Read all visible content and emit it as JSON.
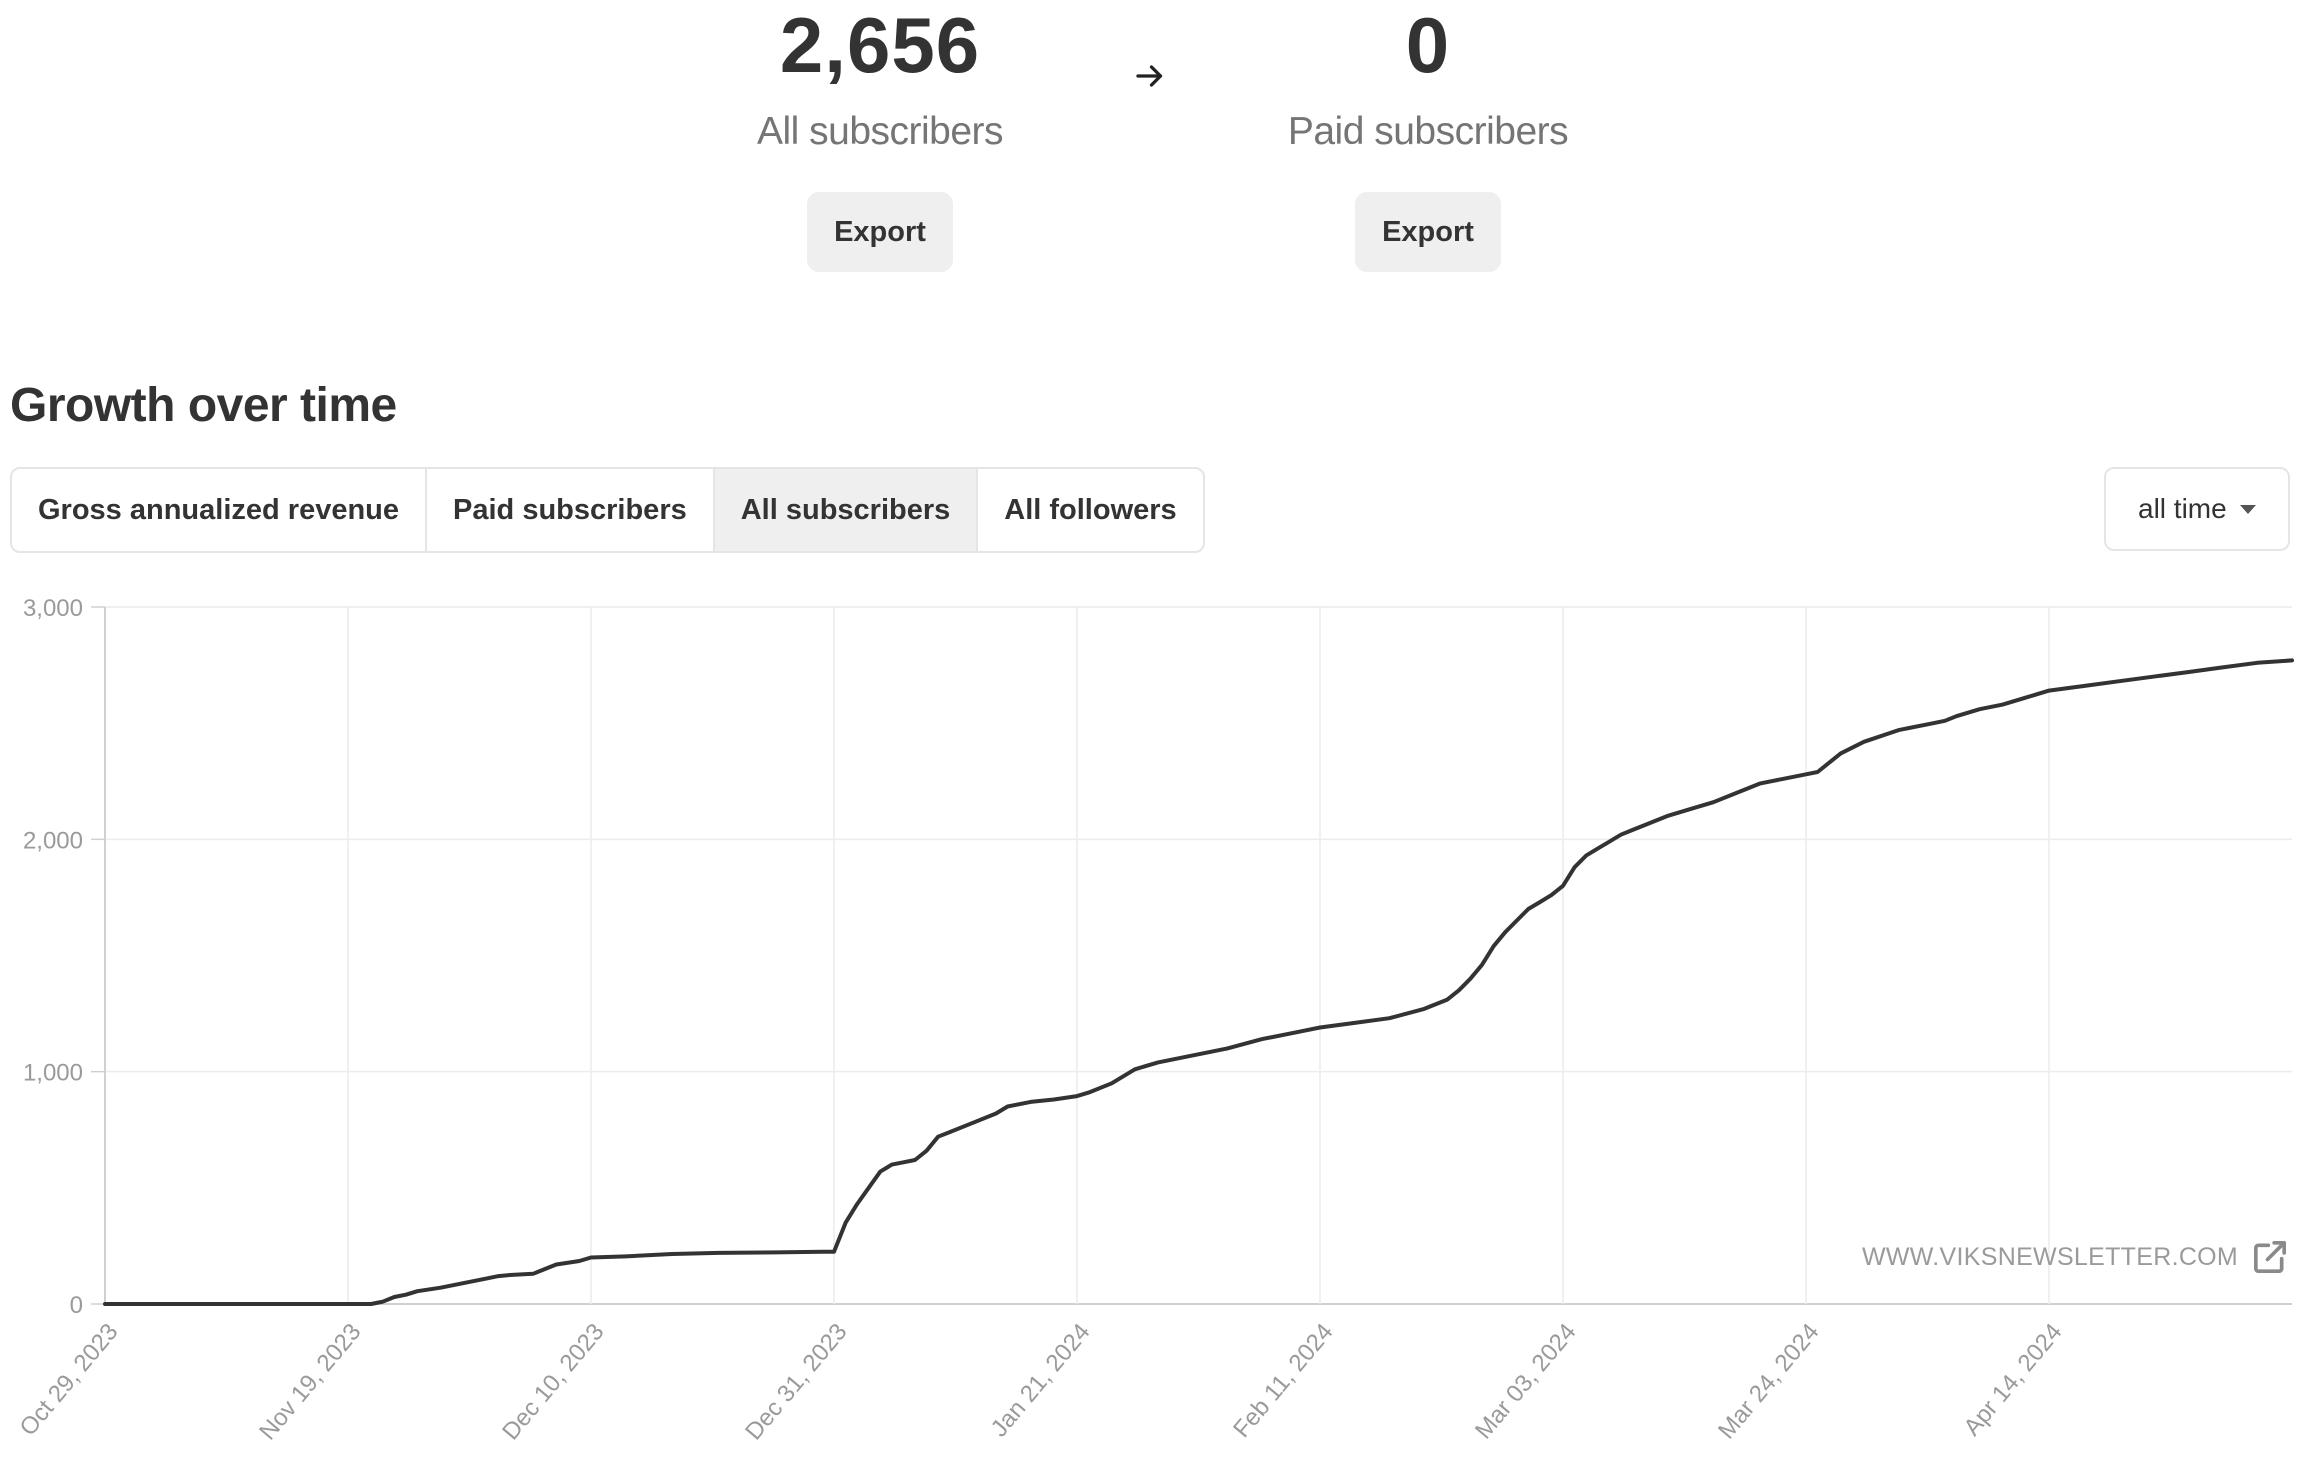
{
  "summary": {
    "all_subscribers": {
      "value": "2,656",
      "label": "All subscribers",
      "export_label": "Export"
    },
    "paid_subscribers": {
      "value": "0",
      "label": "Paid subscribers",
      "export_label": "Export"
    },
    "arrow_icon": "arrow-right-icon"
  },
  "growth": {
    "title": "Growth over time",
    "tabs": [
      {
        "label": "Gross annualized revenue",
        "active": false
      },
      {
        "label": "Paid subscribers",
        "active": false
      },
      {
        "label": "All subscribers",
        "active": true
      },
      {
        "label": "All followers",
        "active": false
      }
    ],
    "range": {
      "value": "all time",
      "icon": "caret-down-icon"
    }
  },
  "watermark": {
    "text": "WWW.VIKSNEWSLETTER.COM",
    "icon": "external-link-icon"
  },
  "chart_data": {
    "type": "line",
    "title": "",
    "xlabel": "",
    "ylabel": "",
    "ylim": [
      0,
      3000
    ],
    "y_ticks": [
      0,
      1000,
      2000,
      3000
    ],
    "y_tick_labels": [
      "0",
      "1,000",
      "2,000",
      "3,000"
    ],
    "x_ticks": [
      "2023-10-29",
      "2023-11-19",
      "2023-12-10",
      "2023-12-31",
      "2024-01-21",
      "2024-02-11",
      "2024-03-03",
      "2024-03-24",
      "2024-04-14"
    ],
    "x_tick_labels": [
      "Oct 29, 2023",
      "Nov 19, 2023",
      "Dec 10, 2023",
      "Dec 31, 2023",
      "Jan 21, 2024",
      "Feb 11, 2024",
      "Mar 03, 2024",
      "Mar 24, 2024",
      "Apr 14, 2024"
    ],
    "xlim": [
      "2023-10-29",
      "2024-05-05"
    ],
    "grid": true,
    "line_color": "#333333",
    "series": [
      {
        "x": [
          "2023-10-29",
          "2023-11-05",
          "2023-11-12",
          "2023-11-17",
          "2023-11-21",
          "2023-11-22",
          "2023-11-23",
          "2023-11-24",
          "2023-11-25",
          "2023-11-27",
          "2023-11-29",
          "2023-12-01",
          "2023-12-02",
          "2023-12-03",
          "2023-12-05",
          "2023-12-06",
          "2023-12-07",
          "2023-12-09",
          "2023-12-10",
          "2023-12-13",
          "2023-12-17",
          "2023-12-21",
          "2023-12-26",
          "2023-12-30",
          "2023-12-31",
          "2024-01-01",
          "2024-01-02",
          "2024-01-03",
          "2024-01-04",
          "2024-01-05",
          "2024-01-06",
          "2024-01-07",
          "2024-01-08",
          "2024-01-09",
          "2024-01-10",
          "2024-01-12",
          "2024-01-14",
          "2024-01-15",
          "2024-01-17",
          "2024-01-19",
          "2024-01-21",
          "2024-01-22",
          "2024-01-24",
          "2024-01-26",
          "2024-01-28",
          "2024-01-31",
          "2024-02-03",
          "2024-02-06",
          "2024-02-09",
          "2024-02-11",
          "2024-02-14",
          "2024-02-17",
          "2024-02-20",
          "2024-02-22",
          "2024-02-23",
          "2024-02-24",
          "2024-02-25",
          "2024-02-26",
          "2024-02-27",
          "2024-02-28",
          "2024-02-29",
          "2024-03-01",
          "2024-03-02",
          "2024-03-03",
          "2024-03-04",
          "2024-03-05",
          "2024-03-06",
          "2024-03-07",
          "2024-03-08",
          "2024-03-09",
          "2024-03-10",
          "2024-03-12",
          "2024-03-14",
          "2024-03-16",
          "2024-03-18",
          "2024-03-20",
          "2024-03-22",
          "2024-03-24",
          "2024-03-25",
          "2024-03-27",
          "2024-03-29",
          "2024-04-01",
          "2024-04-04",
          "2024-04-05",
          "2024-04-06",
          "2024-04-08",
          "2024-04-10",
          "2024-04-12",
          "2024-04-14",
          "2024-04-17",
          "2024-04-20",
          "2024-04-23",
          "2024-04-26",
          "2024-04-29",
          "2024-05-02",
          "2024-05-05"
        ],
        "y": [
          0,
          0,
          0,
          0,
          0,
          10,
          30,
          40,
          55,
          70,
          90,
          110,
          120,
          125,
          130,
          150,
          170,
          185,
          200,
          205,
          215,
          220,
          222,
          225,
          225,
          350,
          430,
          500,
          570,
          600,
          610,
          620,
          660,
          720,
          740,
          780,
          820,
          850,
          870,
          880,
          895,
          910,
          950,
          1010,
          1040,
          1070,
          1100,
          1140,
          1170,
          1190,
          1210,
          1230,
          1270,
          1310,
          1350,
          1400,
          1460,
          1540,
          1600,
          1650,
          1700,
          1730,
          1760,
          1800,
          1880,
          1930,
          1960,
          1990,
          2020,
          2040,
          2060,
          2100,
          2130,
          2160,
          2200,
          2240,
          2260,
          2280,
          2290,
          2370,
          2420,
          2470,
          2500,
          2510,
          2530,
          2560,
          2580,
          2610,
          2640,
          2660,
          2680,
          2700,
          2720,
          2740,
          2760,
          2770
        ]
      }
    ]
  }
}
